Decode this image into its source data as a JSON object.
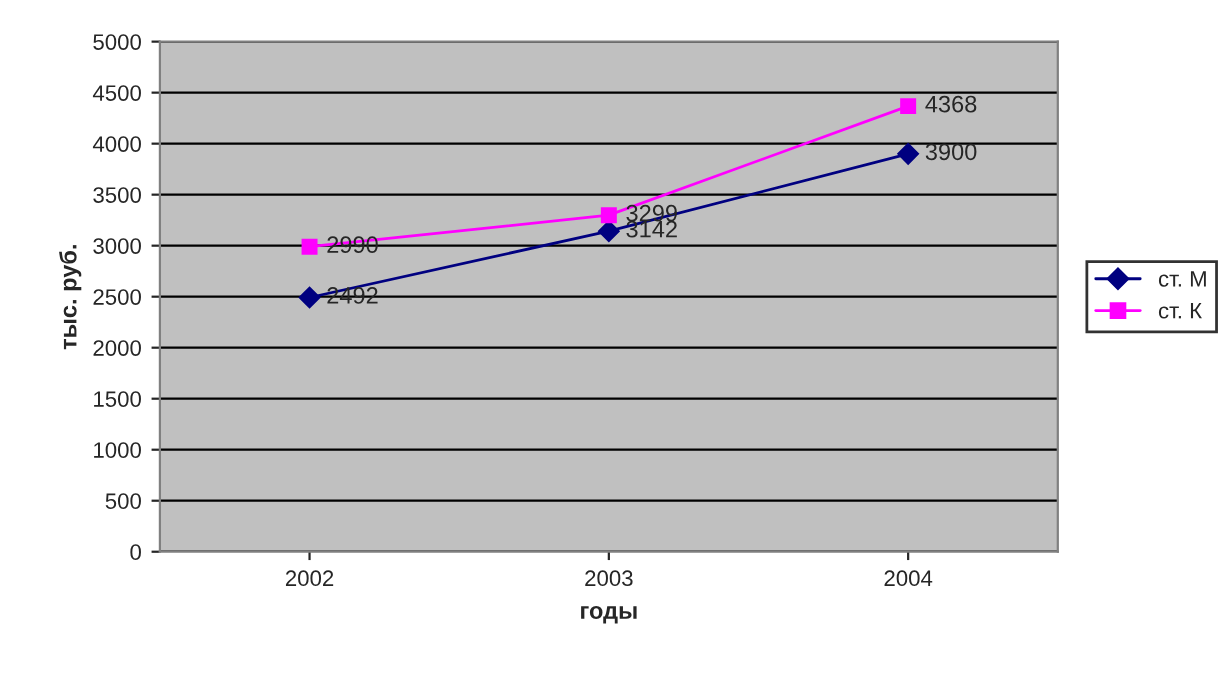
{
  "chart_data": {
    "type": "line",
    "xlabel": "годы",
    "ylabel": "тыс. руб.",
    "categories": [
      "2002",
      "2003",
      "2004"
    ],
    "series": [
      {
        "name": "ст. М",
        "color": "#000080",
        "marker": "diamond",
        "values": [
          2492,
          3142,
          3900
        ]
      },
      {
        "name": "ст. К",
        "color": "#ff00ff",
        "marker": "square",
        "values": [
          2990,
          3299,
          4368
        ]
      }
    ],
    "ylim": [
      0,
      5000
    ],
    "yticks": [
      0,
      500,
      1000,
      1500,
      2000,
      2500,
      3000,
      3500,
      4000,
      4500,
      5000
    ],
    "grid": "y",
    "legend": "right",
    "data_labels": true
  }
}
